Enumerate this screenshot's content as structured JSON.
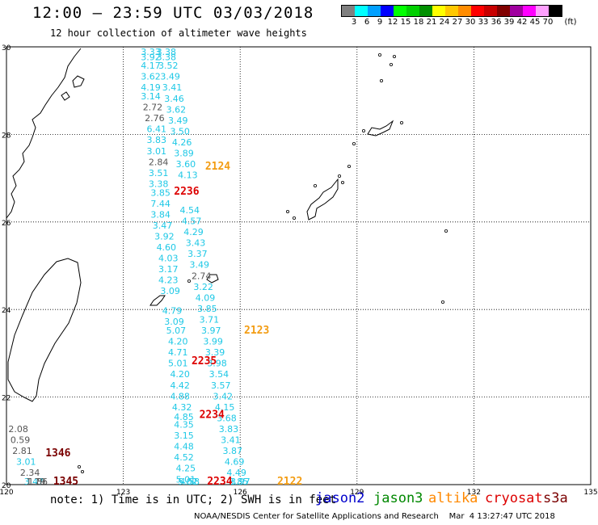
{
  "header": {
    "title": "12:00 – 23:59 UTC 03/03/2018",
    "subtitle": "12 hour collection of altimeter wave heights"
  },
  "legend": {
    "unit": "(ft)",
    "entries": [
      {
        "label": "3",
        "color": "#7f7f7f"
      },
      {
        "label": "6",
        "color": "#00ffff"
      },
      {
        "label": "9",
        "color": "#00a0ff"
      },
      {
        "label": "12",
        "color": "#0000ff"
      },
      {
        "label": "15",
        "color": "#00ff00"
      },
      {
        "label": "18",
        "color": "#00d000"
      },
      {
        "label": "21",
        "color": "#009000"
      },
      {
        "label": "24",
        "color": "#ffff00"
      },
      {
        "label": "27",
        "color": "#ffc800"
      },
      {
        "label": "30",
        "color": "#ff8c00"
      },
      {
        "label": "33",
        "color": "#ff0000"
      },
      {
        "label": "36",
        "color": "#c80000"
      },
      {
        "label": "39",
        "color": "#800000"
      },
      {
        "label": "42",
        "color": "#a000a0"
      },
      {
        "label": "45",
        "color": "#ff00ff"
      },
      {
        "label": "70",
        "color": "#ffa0ff"
      },
      {
        "label": "",
        "color": "#000000"
      }
    ]
  },
  "axes": {
    "lon_labels": [
      "120",
      "123",
      "126",
      "129",
      "132",
      "135"
    ],
    "lat_labels": [
      "30",
      "28",
      "26",
      "24",
      "22",
      "20"
    ],
    "lon_range": [
      120,
      135
    ],
    "lat_range": [
      20,
      30
    ]
  },
  "colors": {
    "gray": "#555555",
    "cyan": "#1ec8e6",
    "orange": "#f39c12",
    "red": "#dd0000",
    "darkred": "#7a0000",
    "jason2": "#0000cc",
    "jason3": "#008800",
    "altika": "#ff8800",
    "cryosat": "#dd0000",
    "s3a": "#7a0000"
  },
  "tracks": [
    {
      "name": "pass-left-cyan",
      "points": [
        {
          "lon": 123.45,
          "lat": 29.9,
          "v": "3.33",
          "c": "cyan"
        },
        {
          "lon": 123.45,
          "lat": 29.7,
          "v": "3.92",
          "c": "cyan"
        },
        {
          "lon": 123.45,
          "lat": 29.5,
          "v": "4.17",
          "c": "cyan"
        },
        {
          "lon": 123.45,
          "lat": 29.25,
          "v": "3.62",
          "c": "cyan"
        },
        {
          "lon": 123.45,
          "lat": 29.0,
          "v": "4.19",
          "c": "cyan"
        },
        {
          "lon": 123.45,
          "lat": 28.8,
          "v": "3.14",
          "c": "cyan"
        },
        {
          "lon": 123.5,
          "lat": 28.55,
          "v": "2.72",
          "c": "gray"
        },
        {
          "lon": 123.55,
          "lat": 28.3,
          "v": "2.76",
          "c": "gray"
        },
        {
          "lon": 123.6,
          "lat": 28.05,
          "v": "6.41",
          "c": "cyan"
        },
        {
          "lon": 123.6,
          "lat": 27.8,
          "v": "3.83",
          "c": "cyan"
        },
        {
          "lon": 123.6,
          "lat": 27.55,
          "v": "3.01",
          "c": "cyan"
        },
        {
          "lon": 123.65,
          "lat": 27.3,
          "v": "2.84",
          "c": "gray"
        },
        {
          "lon": 123.65,
          "lat": 27.05,
          "v": "3.51",
          "c": "cyan"
        },
        {
          "lon": 123.65,
          "lat": 26.8,
          "v": "3.38",
          "c": "cyan"
        },
        {
          "lon": 123.7,
          "lat": 26.6,
          "v": "3.85",
          "c": "cyan"
        },
        {
          "lon": 123.7,
          "lat": 26.35,
          "v": "7.44",
          "c": "cyan"
        },
        {
          "lon": 123.7,
          "lat": 26.1,
          "v": "3.84",
          "c": "cyan"
        },
        {
          "lon": 123.75,
          "lat": 25.85,
          "v": "3.47",
          "c": "cyan"
        },
        {
          "lon": 123.8,
          "lat": 25.6,
          "v": "3.92",
          "c": "cyan"
        },
        {
          "lon": 123.85,
          "lat": 25.35,
          "v": "4.60",
          "c": "cyan"
        },
        {
          "lon": 123.9,
          "lat": 25.1,
          "v": "4.03",
          "c": "cyan"
        },
        {
          "lon": 123.9,
          "lat": 24.85,
          "v": "3.17",
          "c": "cyan"
        },
        {
          "lon": 123.9,
          "lat": 24.6,
          "v": "4.23",
          "c": "cyan"
        },
        {
          "lon": 123.95,
          "lat": 24.35,
          "v": "3.09",
          "c": "cyan"
        },
        {
          "lon": 124.0,
          "lat": 23.9,
          "v": "4.79",
          "c": "cyan"
        },
        {
          "lon": 124.05,
          "lat": 23.65,
          "v": "3.09",
          "c": "cyan"
        },
        {
          "lon": 124.1,
          "lat": 23.45,
          "v": "5.07",
          "c": "cyan"
        },
        {
          "lon": 124.15,
          "lat": 23.2,
          "v": "4.20",
          "c": "cyan"
        },
        {
          "lon": 124.15,
          "lat": 22.95,
          "v": "4.71",
          "c": "cyan"
        },
        {
          "lon": 124.15,
          "lat": 22.7,
          "v": "5.01",
          "c": "cyan"
        },
        {
          "lon": 124.2,
          "lat": 22.45,
          "v": "4.20",
          "c": "cyan"
        },
        {
          "lon": 124.2,
          "lat": 22.2,
          "v": "4.42",
          "c": "cyan"
        },
        {
          "lon": 124.2,
          "lat": 21.95,
          "v": "4.88",
          "c": "cyan"
        },
        {
          "lon": 124.25,
          "lat": 21.7,
          "v": "4.32",
          "c": "cyan"
        },
        {
          "lon": 124.3,
          "lat": 21.48,
          "v": "4.85",
          "c": "cyan"
        },
        {
          "lon": 124.3,
          "lat": 21.3,
          "v": "4.35",
          "c": "cyan"
        },
        {
          "lon": 124.3,
          "lat": 21.05,
          "v": "3.15",
          "c": "cyan"
        },
        {
          "lon": 124.3,
          "lat": 20.8,
          "v": "4.48",
          "c": "cyan"
        },
        {
          "lon": 124.3,
          "lat": 20.55,
          "v": "4.52",
          "c": "cyan"
        },
        {
          "lon": 124.35,
          "lat": 20.3,
          "v": "4.25",
          "c": "cyan"
        },
        {
          "lon": 124.35,
          "lat": 20.05,
          "v": "5.01",
          "c": "cyan"
        },
        {
          "lon": 124.4,
          "lat": 19.8,
          "v": "5.02",
          "c": "cyan"
        },
        {
          "lon": 124.45,
          "lat": 19.55,
          "v": "4.58",
          "c": "cyan"
        }
      ]
    },
    {
      "name": "pass-right-cyan",
      "points": [
        {
          "lon": 123.85,
          "lat": 29.9,
          "v": "3.38",
          "c": "cyan"
        },
        {
          "lon": 123.85,
          "lat": 29.7,
          "v": "3.38",
          "c": "cyan"
        },
        {
          "lon": 123.9,
          "lat": 29.5,
          "v": "3.52",
          "c": "cyan"
        },
        {
          "lon": 123.95,
          "lat": 29.25,
          "v": "3.49",
          "c": "cyan"
        },
        {
          "lon": 124.0,
          "lat": 29.0,
          "v": "3.41",
          "c": "cyan"
        },
        {
          "lon": 124.05,
          "lat": 28.75,
          "v": "3.46",
          "c": "cyan"
        },
        {
          "lon": 124.1,
          "lat": 28.5,
          "v": "3.62",
          "c": "cyan"
        },
        {
          "lon": 124.15,
          "lat": 28.25,
          "v": "3.49",
          "c": "cyan"
        },
        {
          "lon": 124.2,
          "lat": 28.0,
          "v": "3.50",
          "c": "cyan"
        },
        {
          "lon": 124.25,
          "lat": 27.75,
          "v": "4.26",
          "c": "cyan"
        },
        {
          "lon": 124.3,
          "lat": 27.5,
          "v": "3.89",
          "c": "cyan"
        },
        {
          "lon": 124.35,
          "lat": 27.25,
          "v": "3.60",
          "c": "cyan"
        },
        {
          "lon": 124.4,
          "lat": 27.0,
          "v": "4.13",
          "c": "cyan"
        },
        {
          "lon": 124.45,
          "lat": 26.2,
          "v": "4.54",
          "c": "cyan"
        },
        {
          "lon": 124.5,
          "lat": 25.95,
          "v": "4.57",
          "c": "cyan"
        },
        {
          "lon": 124.55,
          "lat": 25.7,
          "v": "4.29",
          "c": "cyan"
        },
        {
          "lon": 124.6,
          "lat": 25.45,
          "v": "3.43",
          "c": "cyan"
        },
        {
          "lon": 124.65,
          "lat": 25.2,
          "v": "3.37",
          "c": "cyan"
        },
        {
          "lon": 124.7,
          "lat": 24.95,
          "v": "3.49",
          "c": "cyan"
        },
        {
          "lon": 124.75,
          "lat": 24.7,
          "v": "2.74",
          "c": "gray"
        },
        {
          "lon": 124.8,
          "lat": 24.45,
          "v": "3.22",
          "c": "cyan"
        },
        {
          "lon": 124.85,
          "lat": 24.2,
          "v": "4.09",
          "c": "cyan"
        },
        {
          "lon": 124.9,
          "lat": 23.95,
          "v": "3.85",
          "c": "cyan"
        },
        {
          "lon": 124.95,
          "lat": 23.7,
          "v": "3.71",
          "c": "cyan"
        },
        {
          "lon": 125.0,
          "lat": 23.45,
          "v": "3.97",
          "c": "cyan"
        },
        {
          "lon": 125.05,
          "lat": 23.2,
          "v": "3.99",
          "c": "cyan"
        },
        {
          "lon": 125.1,
          "lat": 22.95,
          "v": "3.39",
          "c": "cyan"
        },
        {
          "lon": 125.15,
          "lat": 22.7,
          "v": "3.98",
          "c": "cyan"
        },
        {
          "lon": 125.2,
          "lat": 22.45,
          "v": "3.54",
          "c": "cyan"
        },
        {
          "lon": 125.25,
          "lat": 22.2,
          "v": "3.57",
          "c": "cyan"
        },
        {
          "lon": 125.3,
          "lat": 21.95,
          "v": "3.42",
          "c": "cyan"
        },
        {
          "lon": 125.35,
          "lat": 21.7,
          "v": "4.15",
          "c": "cyan"
        },
        {
          "lon": 125.4,
          "lat": 21.45,
          "v": "3.68",
          "c": "cyan"
        },
        {
          "lon": 125.45,
          "lat": 21.2,
          "v": "3.83",
          "c": "cyan"
        },
        {
          "lon": 125.5,
          "lat": 20.95,
          "v": "3.41",
          "c": "cyan"
        },
        {
          "lon": 125.55,
          "lat": 20.7,
          "v": "3.87",
          "c": "cyan"
        },
        {
          "lon": 125.6,
          "lat": 20.45,
          "v": "4.69",
          "c": "cyan"
        },
        {
          "lon": 125.65,
          "lat": 20.2,
          "v": "4.49",
          "c": "cyan"
        },
        {
          "lon": 125.7,
          "lat": 19.95,
          "v": "3.85",
          "c": "cyan"
        },
        {
          "lon": 125.75,
          "lat": 19.6,
          "v": "3.97",
          "c": "cyan"
        }
      ]
    },
    {
      "name": "pass-southwest",
      "points": [
        {
          "lon": 120.05,
          "lat": 21.2,
          "v": "2.08",
          "c": "gray"
        },
        {
          "lon": 120.1,
          "lat": 20.95,
          "v": "0.59",
          "c": "gray"
        },
        {
          "lon": 120.15,
          "lat": 20.7,
          "v": "2.81",
          "c": "gray"
        },
        {
          "lon": 120.25,
          "lat": 20.45,
          "v": "3.01",
          "c": "cyan"
        },
        {
          "lon": 120.35,
          "lat": 20.2,
          "v": "2.34",
          "c": "gray"
        },
        {
          "lon": 120.45,
          "lat": 19.95,
          "v": "3.47",
          "c": "cyan"
        },
        {
          "lon": 120.5,
          "lat": 19.7,
          "v": "1.79",
          "c": "gray"
        },
        {
          "lon": 120.55,
          "lat": 19.5,
          "v": "1.86",
          "c": "gray"
        }
      ]
    }
  ],
  "pass_labels": [
    {
      "lon": 125.1,
      "lat": 27.2,
      "v": "2124",
      "c": "orange"
    },
    {
      "lon": 124.3,
      "lat": 26.62,
      "v": "2236",
      "c": "red"
    },
    {
      "lon": 126.1,
      "lat": 23.45,
      "v": "2123",
      "c": "orange"
    },
    {
      "lon": 124.75,
      "lat": 22.75,
      "v": "2235",
      "c": "red"
    },
    {
      "lon": 124.95,
      "lat": 21.52,
      "v": "2234",
      "c": "red"
    },
    {
      "lon": 121.0,
      "lat": 20.65,
      "v": "1346",
      "c": "darkred"
    },
    {
      "lon": 125.15,
      "lat": 19.58,
      "v": "2234",
      "c": "red"
    },
    {
      "lon": 126.95,
      "lat": 19.55,
      "v": "2122",
      "c": "orange"
    },
    {
      "lon": 121.2,
      "lat": 19.52,
      "v": "1345",
      "c": "darkred"
    }
  ],
  "footer": {
    "note": "note: 1) Time is in UTC; 2) SWH is in feet",
    "missions": [
      {
        "label": "jason2",
        "key": "jason2"
      },
      {
        "label": "jason3",
        "key": "jason3"
      },
      {
        "label": "altika",
        "key": "altika"
      },
      {
        "label": "cryosat",
        "key": "cryosat"
      },
      {
        "label": "s3a",
        "key": "s3a"
      }
    ],
    "credits": "NOAA/NESDIS Center for Satellite Applications and Research    Mar  4 13:27:47 UTC 2018"
  }
}
